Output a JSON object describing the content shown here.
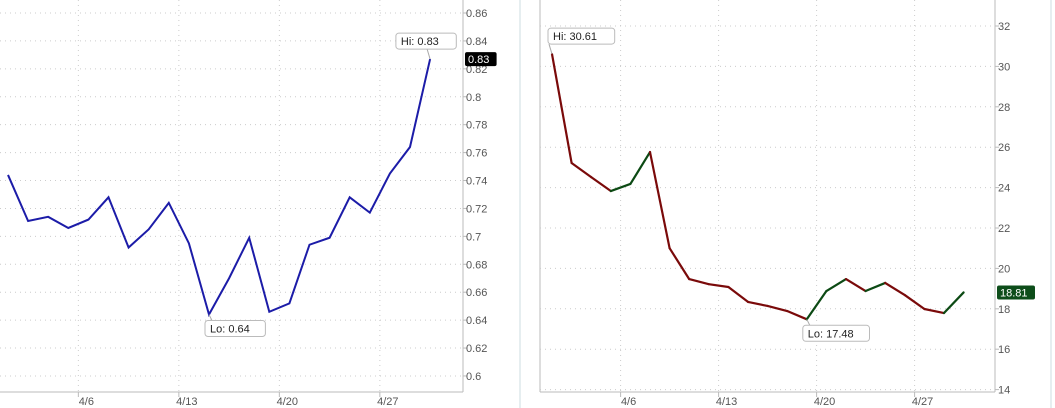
{
  "chart_data": [
    {
      "type": "line",
      "x_tick_labels": [
        "4/6",
        "4/13",
        "4/20",
        "4/27"
      ],
      "x": [
        "3/31",
        "4/1",
        "4/2",
        "4/3",
        "4/6",
        "4/7",
        "4/8",
        "4/9",
        "4/10",
        "4/13",
        "4/14",
        "4/15",
        "4/16",
        "4/17",
        "4/20",
        "4/21",
        "4/22",
        "4/23",
        "4/24",
        "4/27",
        "4/28",
        "4/29"
      ],
      "values": [
        0.744,
        0.711,
        0.714,
        0.706,
        0.712,
        0.728,
        0.692,
        0.705,
        0.724,
        0.695,
        0.644,
        0.67,
        0.699,
        0.646,
        0.652,
        0.694,
        0.699,
        0.728,
        0.717,
        0.745,
        0.764,
        0.827
      ],
      "y_tick_labels": [
        "0.6",
        "0.62",
        "0.64",
        "0.66",
        "0.68",
        "0.7",
        "0.72",
        "0.74",
        "0.76",
        "0.78",
        "0.8",
        "0.82",
        "0.84",
        "0.86"
      ],
      "ylim": [
        0.59,
        0.87
      ],
      "axis_position": "right",
      "grid": true,
      "line_color": "#1c1ca8",
      "hi_label": "Hi: 0.83",
      "lo_label": "Lo: 0.64",
      "last_value_label": "0.83",
      "last_value_color": "#000000"
    },
    {
      "type": "line",
      "x_tick_labels": [
        "4/6",
        "4/13",
        "4/20",
        "4/27"
      ],
      "x": [
        "3/31",
        "4/1",
        "4/2",
        "4/3",
        "4/6",
        "4/7",
        "4/8",
        "4/9",
        "4/10",
        "4/13",
        "4/14",
        "4/15",
        "4/16",
        "4/17",
        "4/20",
        "4/21",
        "4/22",
        "4/23",
        "4/24",
        "4/27",
        "4/28",
        "4/29"
      ],
      "values": [
        30.61,
        25.22,
        24.52,
        23.83,
        24.18,
        25.76,
        21.0,
        19.47,
        19.22,
        19.08,
        18.34,
        18.14,
        17.89,
        17.48,
        18.88,
        19.47,
        18.88,
        19.28,
        18.68,
        17.99,
        17.79,
        18.81
      ],
      "y_tick_labels": [
        "14",
        "16",
        "18",
        "20",
        "22",
        "24",
        "26",
        "28",
        "30",
        "32"
      ],
      "ylim": [
        14,
        33
      ],
      "axis_position": "right",
      "grid": true,
      "down_color": "#7a0a0a",
      "up_color": "#0c4a14",
      "hi_label": "Hi: 30.61",
      "lo_label": "Lo: 17.48",
      "last_value_label": "18.81",
      "last_value_color": "#0d4d1a"
    }
  ]
}
